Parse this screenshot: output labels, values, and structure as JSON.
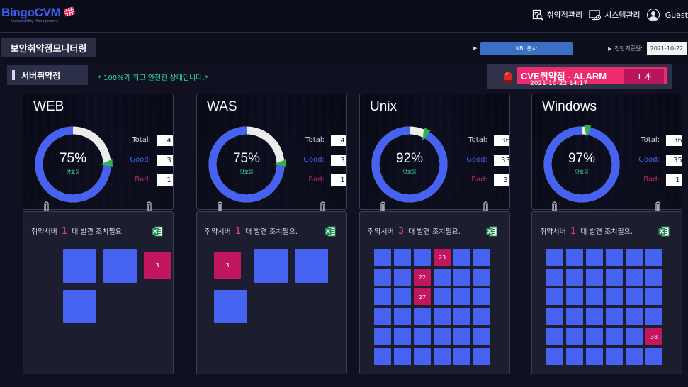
{
  "header": {
    "logo_text": "BingoCVM",
    "logo_subtitle": "Vulnerability Management",
    "nav": [
      {
        "label": "취약점관리",
        "icon": "vulnerability-search-icon"
      },
      {
        "label": "시스템관리",
        "icon": "system-monitor-icon"
      }
    ],
    "user": {
      "label": "Guest",
      "icon": "user-avatar-icon"
    }
  },
  "titlebar": {
    "title": "보안취약점모니터링",
    "org_value": "KBI 본사",
    "date_label": "진단기준일:",
    "date_value": "2021-10-22"
  },
  "section": {
    "title": "서버취약점",
    "note": "* 100%가 최고 안전한 상태입니다.*"
  },
  "cve": {
    "title": "CVE취약점 - ALARM",
    "time": "2021-10-22 14:17",
    "count": "1 개",
    "icon": "alarm-light-icon"
  },
  "labels": {
    "total": "Total:",
    "good": "Good:",
    "bad": "Bad:",
    "ratio_label": "양호율",
    "found_prefix": "취약서버",
    "found_suffix": "대 발견 조치필요."
  },
  "colors": {
    "good": "#4563f0",
    "bad": "#c2165f",
    "ring_remainder": "#ececec",
    "pointer": "#2fb34a",
    "accent_pink": "#ec2a6d"
  },
  "panels": [
    {
      "name": "WEB",
      "percent": "75%",
      "ratio": 0.75,
      "total": "4",
      "good": "3",
      "bad": "1",
      "found": "1",
      "cols": 3,
      "tile_size": 47,
      "gap": 10,
      "left": 56,
      "top": 53,
      "servers": [
        {
          "bad": false
        },
        {
          "bad": false
        },
        {
          "bad": true,
          "label": "3"
        },
        {
          "bad": false
        }
      ]
    },
    {
      "name": "WAS",
      "percent": "75%",
      "ratio": 0.75,
      "total": "4",
      "good": "3",
      "bad": "1",
      "found": "1",
      "cols": 3,
      "tile_size": 47,
      "gap": 10,
      "left": 24,
      "top": 53,
      "servers": [
        {
          "bad": true,
          "label": "3"
        },
        {
          "bad": false
        },
        {
          "bad": false
        },
        {
          "bad": false
        }
      ]
    },
    {
      "name": "Unix",
      "percent": "92%",
      "ratio": 0.92,
      "total": "36",
      "good": "33",
      "bad": "3",
      "found": "3",
      "cols": 6,
      "tile_size": 24,
      "gap": 4,
      "left": 20,
      "top": 52,
      "servers": [
        {
          "bad": false
        },
        {
          "bad": false
        },
        {
          "bad": false
        },
        {
          "bad": true,
          "label": "23"
        },
        {
          "bad": false
        },
        {
          "bad": false
        },
        {
          "bad": false
        },
        {
          "bad": false
        },
        {
          "bad": true,
          "label": "22"
        },
        {
          "bad": false
        },
        {
          "bad": false
        },
        {
          "bad": false
        },
        {
          "bad": false
        },
        {
          "bad": false
        },
        {
          "bad": true,
          "label": "27"
        },
        {
          "bad": false
        },
        {
          "bad": false
        },
        {
          "bad": false
        },
        {
          "bad": false
        },
        {
          "bad": false
        },
        {
          "bad": false
        },
        {
          "bad": false
        },
        {
          "bad": false
        },
        {
          "bad": false
        },
        {
          "bad": false
        },
        {
          "bad": false
        },
        {
          "bad": false
        },
        {
          "bad": false
        },
        {
          "bad": false
        },
        {
          "bad": false
        },
        {
          "bad": false
        },
        {
          "bad": false
        },
        {
          "bad": false
        },
        {
          "bad": false
        },
        {
          "bad": false
        },
        {
          "bad": false
        }
      ]
    },
    {
      "name": "Windows",
      "percent": "97%",
      "ratio": 0.97,
      "total": "36",
      "good": "35",
      "bad": "1",
      "found": "1",
      "cols": 6,
      "tile_size": 24,
      "gap": 4,
      "left": 20,
      "top": 52,
      "servers": [
        {
          "bad": false
        },
        {
          "bad": false
        },
        {
          "bad": false
        },
        {
          "bad": false
        },
        {
          "bad": false
        },
        {
          "bad": false
        },
        {
          "bad": false
        },
        {
          "bad": false
        },
        {
          "bad": false
        },
        {
          "bad": false
        },
        {
          "bad": false
        },
        {
          "bad": false
        },
        {
          "bad": false
        },
        {
          "bad": false
        },
        {
          "bad": false
        },
        {
          "bad": false
        },
        {
          "bad": false
        },
        {
          "bad": false
        },
        {
          "bad": false
        },
        {
          "bad": false
        },
        {
          "bad": false
        },
        {
          "bad": false
        },
        {
          "bad": false
        },
        {
          "bad": false
        },
        {
          "bad": false
        },
        {
          "bad": false
        },
        {
          "bad": false
        },
        {
          "bad": false
        },
        {
          "bad": false
        },
        {
          "bad": true,
          "label": "38"
        },
        {
          "bad": false
        },
        {
          "bad": false
        },
        {
          "bad": false
        },
        {
          "bad": false
        },
        {
          "bad": false
        },
        {
          "bad": false
        }
      ]
    }
  ]
}
